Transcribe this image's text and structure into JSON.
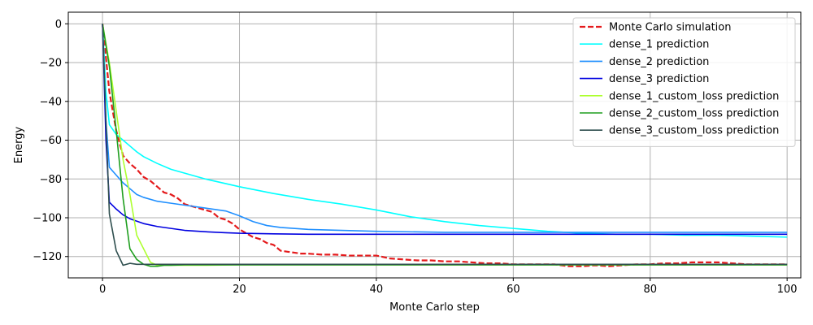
{
  "chart_data": {
    "type": "line",
    "xlabel": "Monte Carlo step",
    "ylabel": "Energy",
    "xlim": [
      -5,
      102
    ],
    "ylim": [
      -131,
      6
    ],
    "xticks": [
      0,
      20,
      40,
      60,
      80,
      100
    ],
    "yticks": [
      0,
      -20,
      -40,
      -60,
      -80,
      -100,
      -120
    ],
    "grid": true,
    "legend_position": "top-right",
    "series": [
      {
        "name": "Monte Carlo simulation",
        "color": "#e41a1c",
        "dash": "dashed",
        "x": [
          0,
          1,
          2,
          3,
          4,
          5,
          6,
          7,
          8,
          9,
          10,
          11,
          12,
          13,
          14,
          15,
          16,
          17,
          18,
          19,
          20,
          21,
          22,
          23,
          24,
          25,
          26,
          27,
          28,
          29,
          30,
          32,
          34,
          36,
          38,
          40,
          42,
          44,
          46,
          48,
          50,
          52,
          54,
          56,
          58,
          60,
          62,
          64,
          66,
          68,
          70,
          72,
          74,
          76,
          78,
          80,
          82,
          84,
          86,
          88,
          90,
          92,
          94,
          96,
          98,
          100
        ],
        "y": [
          0,
          -35,
          -55,
          -68,
          -72,
          -75,
          -79,
          -81,
          -84,
          -87,
          -88,
          -90,
          -93,
          -94,
          -95,
          -96,
          -97,
          -100,
          -101,
          -103,
          -106,
          -108,
          -110,
          -111,
          -113,
          -114,
          -117,
          -117.5,
          -118,
          -118.5,
          -118.5,
          -119,
          -119,
          -119.5,
          -119.5,
          -119.5,
          -121,
          -121.5,
          -122,
          -122,
          -122.5,
          -122.5,
          -123,
          -123.5,
          -123.5,
          -124,
          -124,
          -124,
          -124,
          -125,
          -125,
          -124.5,
          -125,
          -124.5,
          -124,
          -124,
          -123.5,
          -123.5,
          -123,
          -123,
          -123,
          -123.5,
          -124,
          -124,
          -124,
          -124
        ]
      },
      {
        "name": "dense_1 prediction",
        "color": "#00ffff",
        "dash": "solid",
        "x": [
          0,
          0.5,
          1,
          2,
          3,
          4,
          5,
          6,
          8,
          10,
          12,
          15,
          20,
          25,
          30,
          35,
          40,
          45,
          50,
          55,
          60,
          65,
          70,
          75,
          80,
          85,
          90,
          95,
          100
        ],
        "y": [
          0,
          -35,
          -52,
          -57,
          -60,
          -63,
          -66,
          -68.5,
          -72,
          -75,
          -77,
          -80,
          -84,
          -87.5,
          -90.5,
          -93,
          -96,
          -99.5,
          -102,
          -104,
          -105.5,
          -107,
          -108,
          -108.5,
          -108.5,
          -109,
          -109,
          -109.5,
          -110
        ]
      },
      {
        "name": "dense_2 prediction",
        "color": "#1f8fff",
        "dash": "solid",
        "x": [
          0,
          0.5,
          1,
          2,
          3,
          4,
          5,
          6,
          8,
          10,
          12,
          15,
          18,
          20,
          22,
          24,
          26,
          30,
          35,
          40,
          50,
          60,
          70,
          80,
          90,
          100
        ],
        "y": [
          0,
          -50,
          -74,
          -78,
          -82,
          -85,
          -88,
          -89.5,
          -91.5,
          -92.5,
          -93.5,
          -95,
          -96.5,
          -99,
          -102,
          -104,
          -105,
          -106,
          -106.5,
          -107,
          -107.5,
          -107.5,
          -107.5,
          -107.5,
          -107.5,
          -107.5
        ]
      },
      {
        "name": "dense_3 prediction",
        "color": "#0000e0",
        "dash": "solid",
        "x": [
          0,
          0.5,
          1,
          2,
          3,
          4,
          6,
          8,
          10,
          12,
          15,
          18,
          20,
          25,
          30,
          40,
          50,
          60,
          70,
          80,
          90,
          100
        ],
        "y": [
          0,
          -60,
          -92,
          -95.5,
          -98.5,
          -100.5,
          -103,
          -104.5,
          -105.5,
          -106.5,
          -107.2,
          -107.7,
          -108,
          -108.3,
          -108.5,
          -108.5,
          -108.5,
          -108.5,
          -108.5,
          -108.5,
          -108.5,
          -108.5
        ]
      },
      {
        "name": "dense_1_custom_loss prediction",
        "color": "#adff2f",
        "dash": "solid",
        "x": [
          0,
          1,
          2,
          3,
          4,
          5,
          6,
          7,
          8,
          9,
          10,
          12,
          15,
          20,
          25,
          30,
          40,
          50,
          60,
          70,
          80,
          90,
          100
        ],
        "y": [
          0,
          -20,
          -45,
          -70,
          -88,
          -109,
          -116,
          -123,
          -124.5,
          -124.5,
          -124.5,
          -124.5,
          -124.5,
          -124.3,
          -124.3,
          -124.3,
          -124.3,
          -124.3,
          -124.3,
          -124.3,
          -124.3,
          -124.3,
          -124.3
        ]
      },
      {
        "name": "dense_2_custom_loss prediction",
        "color": "#1e9e1e",
        "dash": "solid",
        "x": [
          0,
          1,
          2,
          3,
          4,
          5,
          6,
          7,
          8,
          9,
          10,
          12,
          15,
          20,
          25,
          30,
          40,
          50,
          60,
          70,
          80,
          90,
          100
        ],
        "y": [
          0,
          -22,
          -55,
          -90,
          -116,
          -121.5,
          -124,
          -125,
          -125,
          -124.5,
          -124.5,
          -124.3,
          -124.3,
          -124.3,
          -124.3,
          -124.3,
          -124.3,
          -124.3,
          -124.3,
          -124.3,
          -124.3,
          -124.3,
          -124.3
        ]
      },
      {
        "name": "dense_3_custom_loss prediction",
        "color": "#2f4f4f",
        "dash": "solid",
        "x": [
          0,
          0.5,
          1,
          2,
          3,
          4,
          5,
          6,
          8,
          10,
          15,
          20,
          30,
          40,
          50,
          60,
          70,
          80,
          90,
          100
        ],
        "y": [
          0,
          -50,
          -98,
          -117,
          -124.5,
          -123.5,
          -124,
          -124,
          -124,
          -124,
          -124,
          -124,
          -124,
          -124,
          -124,
          -124,
          -124,
          -124,
          -124,
          -124
        ]
      }
    ]
  }
}
